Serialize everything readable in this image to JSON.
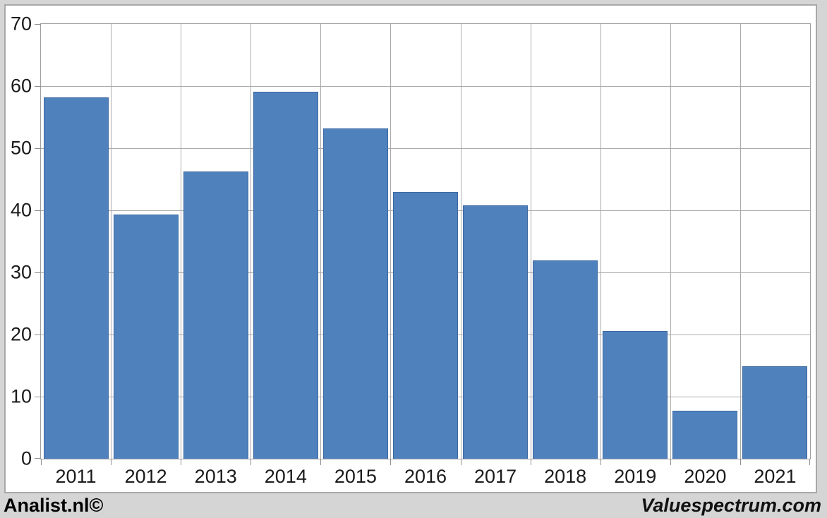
{
  "page": {
    "background_color": "#d5d5d5",
    "chart_background": "#ffffff",
    "frame_border_color": "#a8a8a8"
  },
  "footer": {
    "left_text": "Analist.nl©",
    "right_text": "Valuespectrum.com"
  },
  "chart_data": {
    "type": "bar",
    "title": "",
    "xlabel": "",
    "ylabel": "",
    "categories": [
      "2011",
      "2012",
      "2013",
      "2014",
      "2015",
      "2016",
      "2017",
      "2018",
      "2019",
      "2020",
      "2021"
    ],
    "values": [
      58.2,
      39.3,
      46.3,
      59.1,
      53.2,
      43.0,
      40.8,
      31.9,
      20.6,
      7.7,
      14.9
    ],
    "ylim": [
      0,
      70
    ],
    "ytick_step": 10,
    "grid": true,
    "legend": false,
    "bar_color": "#4f81bd",
    "grid_color": "#ababab",
    "axis_color": "#a0a0a0",
    "tick_label_color": "#1a1a1a"
  }
}
